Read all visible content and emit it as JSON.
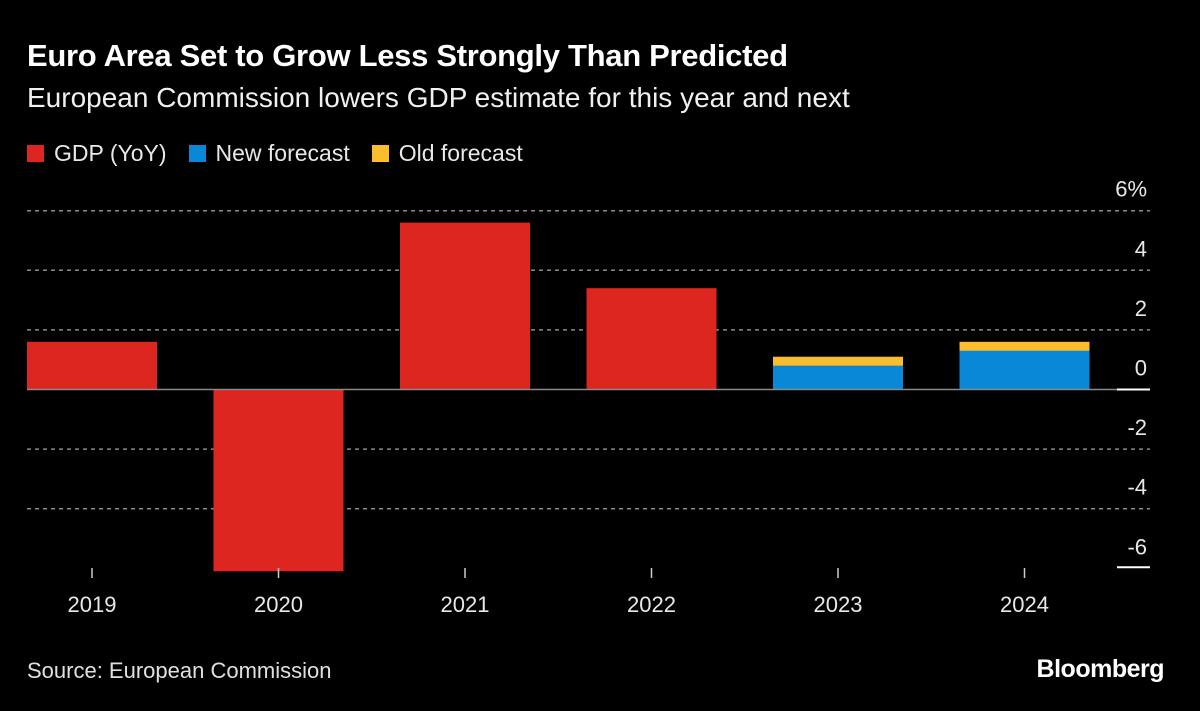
{
  "chart_data": {
    "type": "bar",
    "title": "Euro Area Set to Grow Less Strongly Than Predicted",
    "subtitle": "European Commission lowers GDP estimate for this year and next",
    "categories": [
      "2019",
      "2020",
      "2021",
      "2022",
      "2023",
      "2024"
    ],
    "series": [
      {
        "name": "GDP (YoY)",
        "color": "#de2620",
        "values": [
          1.6,
          -6.1,
          5.6,
          3.4,
          null,
          null
        ]
      },
      {
        "name": "New forecast",
        "color": "#0a88d8",
        "values": [
          null,
          null,
          null,
          null,
          0.8,
          1.3
        ]
      },
      {
        "name": "Old forecast",
        "color": "#fbbd2c",
        "values": [
          null,
          null,
          null,
          null,
          1.1,
          1.6
        ]
      }
    ],
    "ylim": [
      -6,
      6
    ],
    "yticks": [
      6,
      4,
      2,
      0,
      -2,
      -4,
      -6
    ],
    "ytick_labels": [
      "6%",
      "4",
      "2",
      "0",
      "-2",
      "-4",
      "-6"
    ],
    "grid": true,
    "legend_position": "top-left",
    "source": "Source: European Commission",
    "logo": "Bloomberg"
  }
}
